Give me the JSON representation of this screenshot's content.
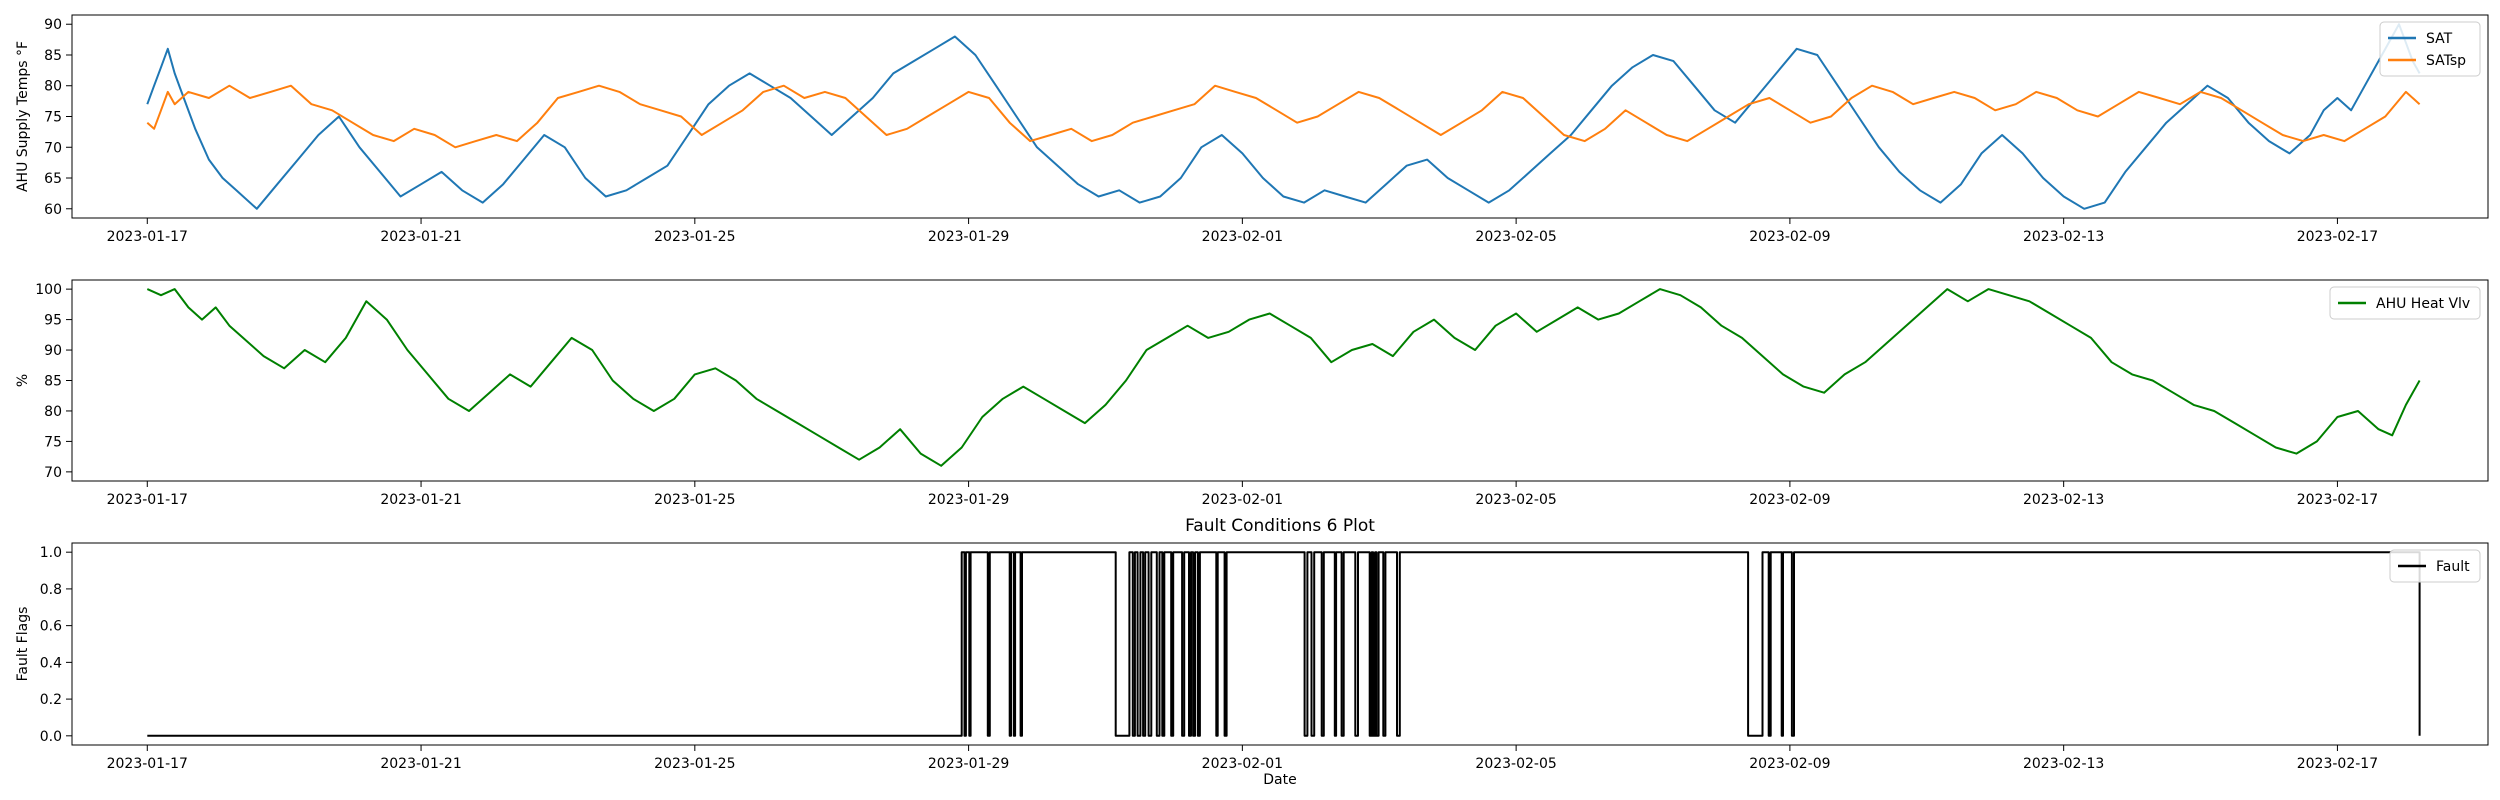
{
  "figure": {
    "title": "Fault Conditions 6 Plot",
    "xlabel": "Date"
  },
  "chart_data": [
    {
      "type": "line",
      "ylabel": "AHU Supply Temps °F",
      "ylim": [
        58.5,
        91.5
      ],
      "yticks": [
        60,
        65,
        70,
        75,
        80,
        85,
        90
      ],
      "ytick_labels": [
        "60",
        "65",
        "70",
        "75",
        "80",
        "85",
        "90"
      ],
      "xlim": [
        -11,
        342
      ],
      "xticks": [
        0,
        40,
        80,
        120,
        160,
        200,
        240,
        280,
        320
      ],
      "xtick_labels": [
        "2023-01-17",
        "2023-01-21",
        "2023-01-25",
        "2023-01-29",
        "2023-02-01",
        "2023-02-05",
        "2023-02-09",
        "2023-02-13",
        "2023-02-17"
      ],
      "x_units": "days since 2023-01-16 21:00 ×10 (0 = 2023-01-17 tick)",
      "legend": "top-right",
      "series": [
        {
          "name": "SAT",
          "color": "#1f77b4",
          "x": [
            0,
            1,
            2,
            3,
            4,
            5,
            7,
            9,
            11,
            13,
            16,
            19,
            22,
            25,
            28,
            31,
            34,
            37,
            40,
            43,
            46,
            49,
            52,
            55,
            58,
            61,
            64,
            67,
            70,
            73,
            76,
            79,
            82,
            85,
            88,
            91,
            94,
            97,
            100,
            103,
            106,
            109,
            112,
            115,
            118,
            121,
            124,
            127,
            130,
            133,
            136,
            139,
            142,
            145,
            148,
            151,
            154,
            157,
            160,
            163,
            166,
            169,
            172,
            175,
            178,
            181,
            184,
            187,
            190,
            193,
            196,
            199,
            202,
            205,
            208,
            211,
            214,
            217,
            220,
            223,
            226,
            229,
            232,
            235,
            238,
            241,
            244,
            247,
            250,
            253,
            256,
            259,
            262,
            265,
            268,
            271,
            274,
            277,
            280,
            283,
            286,
            289,
            292,
            295,
            298,
            301,
            304,
            307,
            310,
            313,
            316,
            318,
            320,
            322,
            324,
            326,
            328,
            329,
            330,
            331,
            332
          ],
          "values": [
            77,
            80,
            83,
            86,
            82,
            79,
            73,
            68,
            65,
            63,
            60,
            64,
            68,
            72,
            75,
            70,
            66,
            62,
            64,
            66,
            63,
            61,
            64,
            68,
            72,
            70,
            65,
            62,
            63,
            65,
            67,
            72,
            77,
            80,
            82,
            80,
            78,
            75,
            72,
            75,
            78,
            82,
            84,
            86,
            88,
            85,
            80,
            75,
            70,
            67,
            64,
            62,
            63,
            61,
            62,
            65,
            70,
            72,
            69,
            65,
            62,
            61,
            63,
            62,
            61,
            64,
            67,
            68,
            65,
            63,
            61,
            63,
            66,
            69,
            72,
            76,
            80,
            83,
            85,
            84,
            80,
            76,
            74,
            78,
            82,
            86,
            85,
            80,
            75,
            70,
            66,
            63,
            61,
            64,
            69,
            72,
            69,
            65,
            62,
            60,
            61,
            66,
            70,
            74,
            77,
            80,
            78,
            74,
            71,
            69,
            72,
            76,
            78,
            76,
            80,
            84,
            88,
            90,
            87,
            84,
            82
          ]
        },
        {
          "name": "SATsp",
          "color": "#ff7f0e",
          "x": [
            0,
            1,
            2,
            3,
            4,
            6,
            9,
            12,
            15,
            18,
            21,
            24,
            27,
            30,
            33,
            36,
            39,
            42,
            45,
            48,
            51,
            54,
            57,
            60,
            63,
            66,
            69,
            72,
            75,
            78,
            81,
            84,
            87,
            90,
            93,
            96,
            99,
            102,
            105,
            108,
            111,
            114,
            117,
            120,
            123,
            126,
            129,
            132,
            135,
            138,
            141,
            144,
            147,
            150,
            153,
            156,
            159,
            162,
            165,
            168,
            171,
            174,
            177,
            180,
            183,
            186,
            189,
            192,
            195,
            198,
            201,
            204,
            207,
            210,
            213,
            216,
            219,
            222,
            225,
            228,
            231,
            234,
            237,
            240,
            243,
            246,
            249,
            252,
            255,
            258,
            261,
            264,
            267,
            270,
            273,
            276,
            279,
            282,
            285,
            288,
            291,
            294,
            297,
            300,
            303,
            306,
            309,
            312,
            315,
            318,
            321,
            324,
            327,
            330,
            332
          ],
          "values": [
            74,
            73,
            76,
            79,
            77,
            79,
            78,
            80,
            78,
            79,
            80,
            77,
            76,
            74,
            72,
            71,
            73,
            72,
            70,
            71,
            72,
            71,
            74,
            78,
            79,
            80,
            79,
            77,
            76,
            75,
            72,
            74,
            76,
            79,
            80,
            78,
            79,
            78,
            75,
            72,
            73,
            75,
            77,
            79,
            78,
            74,
            71,
            72,
            73,
            71,
            72,
            74,
            75,
            76,
            77,
            80,
            79,
            78,
            76,
            74,
            75,
            77,
            79,
            78,
            76,
            74,
            72,
            74,
            76,
            79,
            78,
            75,
            72,
            71,
            73,
            76,
            74,
            72,
            71,
            73,
            75,
            77,
            78,
            76,
            74,
            75,
            78,
            80,
            79,
            77,
            78,
            79,
            78,
            76,
            77,
            79,
            78,
            76,
            75,
            77,
            79,
            78,
            77,
            79,
            78,
            76,
            74,
            72,
            71,
            72,
            71,
            73,
            75,
            79,
            77
          ]
        }
      ]
    },
    {
      "type": "line",
      "ylabel": "%",
      "ylim": [
        68.5,
        101.5
      ],
      "yticks": [
        70,
        75,
        80,
        85,
        90,
        95,
        100
      ],
      "ytick_labels": [
        "70",
        "75",
        "80",
        "85",
        "90",
        "95",
        "100"
      ],
      "xlim": [
        -11,
        342
      ],
      "xticks": [
        0,
        40,
        80,
        120,
        160,
        200,
        240,
        280,
        320
      ],
      "xtick_labels": [
        "2023-01-17",
        "2023-01-21",
        "2023-01-25",
        "2023-01-29",
        "2023-02-01",
        "2023-02-05",
        "2023-02-09",
        "2023-02-13",
        "2023-02-17"
      ],
      "legend": "top-right",
      "series": [
        {
          "name": "AHU Heat Vlv",
          "color": "#008000",
          "x": [
            0,
            2,
            4,
            6,
            8,
            10,
            12,
            14,
            17,
            20,
            23,
            26,
            29,
            32,
            35,
            38,
            41,
            44,
            47,
            50,
            53,
            56,
            59,
            62,
            65,
            68,
            71,
            74,
            77,
            80,
            83,
            86,
            89,
            92,
            95,
            98,
            101,
            104,
            107,
            110,
            113,
            116,
            119,
            122,
            125,
            128,
            131,
            134,
            137,
            140,
            143,
            146,
            149,
            152,
            155,
            158,
            161,
            164,
            167,
            170,
            173,
            176,
            179,
            182,
            185,
            188,
            191,
            194,
            197,
            200,
            203,
            206,
            209,
            212,
            215,
            218,
            221,
            224,
            227,
            230,
            233,
            236,
            239,
            242,
            245,
            248,
            251,
            254,
            257,
            260,
            263,
            266,
            269,
            272,
            275,
            278,
            281,
            284,
            287,
            290,
            293,
            296,
            299,
            302,
            305,
            308,
            311,
            314,
            317,
            320,
            323,
            326,
            328,
            330,
            332
          ],
          "values": [
            100,
            99,
            100,
            97,
            95,
            97,
            94,
            92,
            89,
            87,
            90,
            88,
            92,
            98,
            95,
            90,
            86,
            82,
            80,
            83,
            86,
            84,
            88,
            92,
            90,
            85,
            82,
            80,
            82,
            86,
            87,
            85,
            82,
            80,
            78,
            76,
            74,
            72,
            74,
            77,
            73,
            71,
            74,
            79,
            82,
            84,
            82,
            80,
            78,
            81,
            85,
            90,
            92,
            94,
            92,
            93,
            95,
            96,
            94,
            92,
            88,
            90,
            91,
            89,
            93,
            95,
            92,
            90,
            94,
            96,
            93,
            95,
            97,
            95,
            96,
            98,
            100,
            99,
            97,
            94,
            92,
            89,
            86,
            84,
            83,
            86,
            88,
            91,
            94,
            97,
            100,
            98,
            100,
            99,
            98,
            96,
            94,
            92,
            88,
            86,
            85,
            83,
            81,
            80,
            78,
            76,
            74,
            73,
            75,
            79,
            80,
            77,
            76,
            81,
            85
          ]
        }
      ]
    },
    {
      "type": "line",
      "title": "Fault Conditions 6 Plot",
      "xlabel": "Date",
      "ylabel": "Fault Flags",
      "ylim": [
        -0.05,
        1.05
      ],
      "yticks": [
        0.0,
        0.2,
        0.4,
        0.6,
        0.8,
        1.0
      ],
      "ytick_labels": [
        "0.0",
        "0.2",
        "0.4",
        "0.6",
        "0.8",
        "1.0"
      ],
      "xlim": [
        -11,
        342
      ],
      "xticks": [
        0,
        40,
        80,
        120,
        160,
        200,
        240,
        280,
        320
      ],
      "xtick_labels": [
        "2023-01-17",
        "2023-01-21",
        "2023-01-25",
        "2023-01-29",
        "2023-02-01",
        "2023-02-05",
        "2023-02-09",
        "2023-02-13",
        "2023-02-17"
      ],
      "legend": "top-right",
      "series": [
        {
          "name": "Fault",
          "color": "#000000",
          "step": true,
          "x": [
            0,
            119,
            119.4,
            119.6,
            120.1,
            120.3,
            122.8,
            123.1,
            126,
            126.2,
            126.6,
            126.8,
            127.6,
            127.8,
            141.5,
            143.5,
            144,
            144.3,
            144.7,
            145.1,
            145.5,
            145.8,
            146.3,
            146.7,
            147.5,
            147.9,
            148.3,
            148.6,
            149.6,
            149.9,
            151.2,
            151.5,
            152.2,
            152.5,
            152.8,
            153.1,
            153.5,
            153.8,
            156.2,
            156.4,
            157.4,
            157.7,
            169.1,
            169.5,
            170.1,
            170.5,
            171.6,
            171.9,
            173.5,
            173.7,
            174.5,
            174.8,
            176.5,
            176.9,
            178.6,
            178.9,
            179.1,
            179.4,
            179.6,
            179.9,
            180.6,
            180.9,
            182.6,
            183,
            233.9,
            236,
            236.9,
            237.2,
            238.8,
            239,
            240.3,
            240.6,
            332
          ],
          "values": [
            0,
            1,
            0,
            1,
            0,
            1,
            0,
            1,
            0,
            1,
            0,
            1,
            0,
            1,
            0,
            1,
            0,
            1,
            0,
            1,
            0,
            1,
            0,
            1,
            0,
            1,
            0,
            1,
            0,
            1,
            0,
            1,
            0,
            1,
            0,
            1,
            0,
            1,
            0,
            1,
            0,
            1,
            0,
            1,
            0,
            1,
            0,
            1,
            0,
            1,
            0,
            1,
            0,
            1,
            0,
            1,
            0,
            1,
            0,
            1,
            0,
            1,
            0,
            1,
            0,
            1,
            0,
            1,
            0,
            1,
            0,
            1,
            0
          ]
        }
      ]
    }
  ]
}
